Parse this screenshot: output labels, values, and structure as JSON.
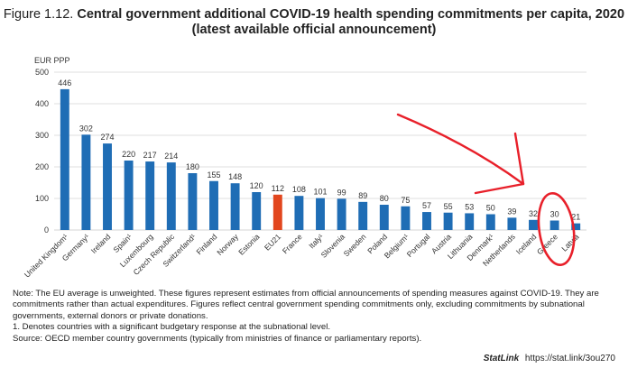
{
  "header": {
    "figure_label": "Figure 1.12.",
    "title_line1": "Central government additional COVID-19 health spending commitments per capita, 2020",
    "title_line2": "(latest available official announcement)"
  },
  "chart_data": {
    "type": "bar",
    "ylabel": "EUR PPP",
    "ylim": [
      0,
      500
    ],
    "yticks": [
      0,
      100,
      200,
      300,
      400,
      500
    ],
    "grid": true,
    "categories": [
      "United Kingdom¹",
      "Germany¹",
      "Ireland",
      "Spain¹",
      "Luxembourg",
      "Czech Republic",
      "Switzerland¹",
      "Finland",
      "Norway",
      "Estonia",
      "EU21",
      "France",
      "Italy¹",
      "Slovenia",
      "Sweden",
      "Poland",
      "Belgium¹",
      "Portugal",
      "Austria",
      "Lithuania",
      "Denmark¹",
      "Netherlands",
      "Iceland",
      "Greece",
      "Latvia"
    ],
    "values": [
      446,
      302,
      274,
      220,
      217,
      214,
      180,
      155,
      148,
      120,
      112,
      108,
      101,
      99,
      89,
      80,
      75,
      57,
      55,
      53,
      50,
      39,
      32,
      30,
      21
    ],
    "highlight": "EU21",
    "colors": {
      "bar": "#1f6db5",
      "highlight": "#e2461e",
      "grid": "#d4d4d4",
      "annotation": "#e8202a"
    }
  },
  "notes": {
    "note": "Note: The EU average is unweighted. These figures represent estimates from official announcements of spending measures against COVID-19. They are commitments rather than actual expenditures. Figures reflect central government spending commitments only, excluding commitments by subnational governments, external donors or private donations.",
    "footnote": "1. Denotes countries with a significant budgetary response at the subnational level.",
    "source": "Source: OECD member country governments (typically from ministries of finance or parliamentary reports)."
  },
  "statlink": {
    "label": "StatLink",
    "url": "https://stat.link/3ou270"
  }
}
